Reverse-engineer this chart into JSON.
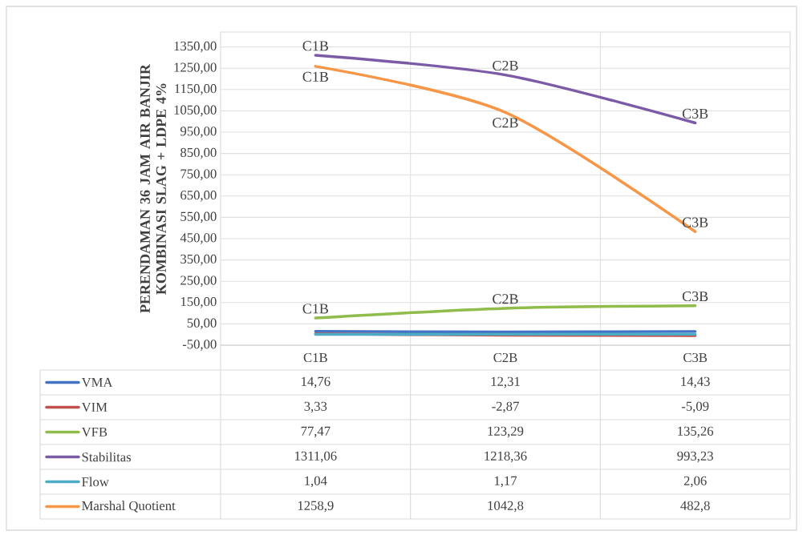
{
  "chart_data": {
    "type": "line",
    "ylabel": "PERENDAMAN 36 JAM AIR BANJIR KOMBINASI SLAG + LDPE 4%",
    "categories": [
      "C1B",
      "C2B",
      "C3B"
    ],
    "ylim": [
      -50,
      1420
    ],
    "yticks": [
      {
        "value": -50,
        "label": "-50,00"
      },
      {
        "value": 50,
        "label": "50,00"
      },
      {
        "value": 150,
        "label": "150,00"
      },
      {
        "value": 250,
        "label": "250,00"
      },
      {
        "value": 350,
        "label": "350,00"
      },
      {
        "value": 450,
        "label": "450,00"
      },
      {
        "value": 550,
        "label": "550,00"
      },
      {
        "value": 650,
        "label": "650,00"
      },
      {
        "value": 750,
        "label": "750,00"
      },
      {
        "value": 850,
        "label": "850,00"
      },
      {
        "value": 950,
        "label": "950,00"
      },
      {
        "value": 1050,
        "label": "1050,00"
      },
      {
        "value": 1150,
        "label": "1150,00"
      },
      {
        "value": 1250,
        "label": "1250,00"
      },
      {
        "value": 1350,
        "label": "1350,00"
      }
    ],
    "grid": true,
    "legend": "bottom",
    "marker": "none",
    "line_style": "solid",
    "series": [
      {
        "name": "VMA",
        "color": "#4472c4",
        "values": [
          14.76,
          12.31,
          14.43
        ],
        "value_labels": [
          "14,76",
          "12,31",
          "14,43"
        ]
      },
      {
        "name": "VIM",
        "color": "#c0504d",
        "values": [
          3.33,
          -2.87,
          -5.09
        ],
        "value_labels": [
          "3,33",
          "-2,87",
          "-5,09"
        ]
      },
      {
        "name": "VFB",
        "color": "#8fbc4a",
        "values": [
          77.47,
          123.29,
          135.26
        ],
        "value_labels": [
          "77,47",
          "123,29",
          "135,26"
        ]
      },
      {
        "name": "Stabilitas",
        "color": "#7b5ba6",
        "values": [
          1311.06,
          1218.36,
          993.23
        ],
        "value_labels": [
          "1311,06",
          "1218,36",
          "993,23"
        ]
      },
      {
        "name": "Flow",
        "color": "#4bacc6",
        "values": [
          1.04,
          1.17,
          2.06
        ],
        "value_labels": [
          "1,04",
          "1,17",
          "2,06"
        ]
      },
      {
        "name": "Marshal Quotient",
        "color": "#f79646",
        "values": [
          1258.9,
          1042.8,
          482.8
        ],
        "value_labels": [
          "1258,9",
          "1042,8",
          "482,8"
        ]
      }
    ],
    "annotations": [
      {
        "text": "C1B",
        "x": "C1B",
        "y": 1311.06
      },
      {
        "text": "C1B",
        "x": "C1B",
        "y": 1258.9
      },
      {
        "text": "C1B",
        "x": "C1B",
        "y": 77.47
      },
      {
        "text": "C2B",
        "x": "C2B",
        "y": 1218.36
      },
      {
        "text": "C2B",
        "x": "C2B",
        "y": 1042.8
      },
      {
        "text": "C2B",
        "x": "C2B",
        "y": 123.29
      },
      {
        "text": "C3B",
        "x": "C3B",
        "y": 993.23
      },
      {
        "text": "C3B",
        "x": "C3B",
        "y": 482.8
      },
      {
        "text": "C3B",
        "x": "C3B",
        "y": 135.26
      }
    ]
  }
}
